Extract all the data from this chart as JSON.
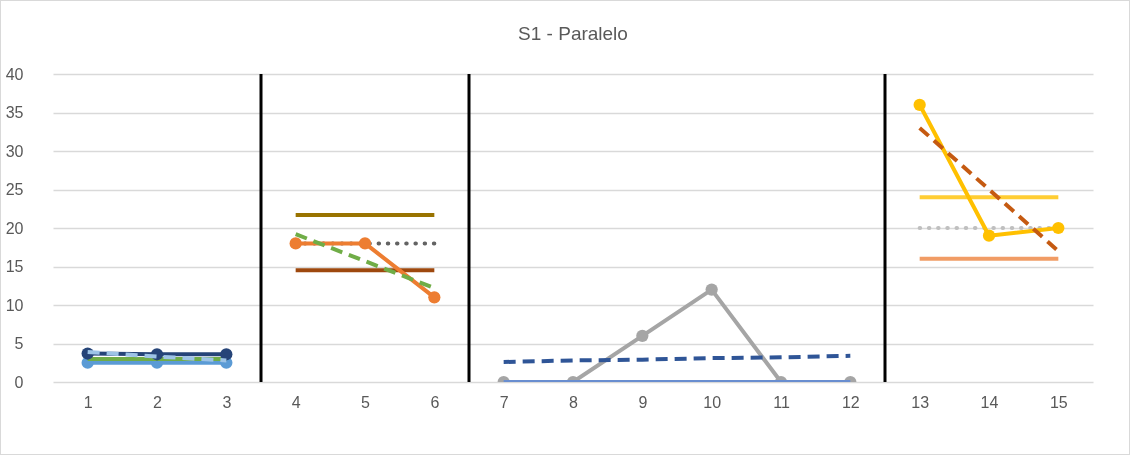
{
  "chart_data": {
    "type": "line",
    "title": "S1 - Paralelo",
    "xlim": [
      0.5,
      15.5
    ],
    "xticks": [
      1,
      2,
      3,
      4,
      5,
      6,
      7,
      8,
      9,
      10,
      11,
      12,
      13,
      14,
      15
    ],
    "ylim": [
      0,
      40
    ],
    "yticks": [
      0,
      5,
      10,
      15,
      20,
      25,
      30,
      35,
      40
    ],
    "grid": "y",
    "series": [
      {
        "color": "#5b9bd5",
        "x": [
          1,
          2,
          3
        ],
        "values": [
          2.5,
          2.5,
          2.5
        ],
        "marker": "circle",
        "line_style": "solid"
      },
      {
        "color": "#70ad47",
        "x": [
          1,
          2,
          3
        ],
        "values": [
          3,
          3,
          3
        ],
        "marker": "none",
        "line_style": "solid"
      },
      {
        "color": "#264478",
        "x": [
          1,
          2,
          3
        ],
        "values": [
          3.7,
          3.6,
          3.6
        ],
        "marker": "circle",
        "line_style": "solid"
      },
      {
        "color": "#9dc3e6",
        "x": [
          1,
          2,
          3
        ],
        "values": [
          3.9,
          3.3,
          2.8
        ],
        "marker": "none",
        "line_style": "dashed"
      },
      {
        "color": "#997300",
        "x": [
          4,
          5,
          6
        ],
        "values": [
          21.7,
          21.7,
          21.7
        ],
        "marker": "none",
        "line_style": "solid"
      },
      {
        "color": "#9e480e",
        "x": [
          4,
          5,
          6
        ],
        "values": [
          14.5,
          14.5,
          14.5
        ],
        "marker": "none",
        "line_style": "solid"
      },
      {
        "color": "#636363",
        "x": [
          4,
          5,
          6
        ],
        "values": [
          18,
          18,
          18
        ],
        "marker": "none",
        "line_style": "dotted"
      },
      {
        "color": "#ed7d31",
        "x": [
          4,
          5,
          6
        ],
        "values": [
          18,
          18,
          11
        ],
        "marker": "circle",
        "line_style": "solid"
      },
      {
        "color": "#70ad47",
        "x": [
          4,
          5,
          6
        ],
        "values": [
          19.2,
          15.7,
          12.2
        ],
        "marker": "none",
        "line_style": "dashed"
      },
      {
        "color": "#a5a5a5",
        "x": [
          7,
          8,
          9,
          10,
          11,
          12
        ],
        "values": [
          0,
          0,
          6,
          12,
          0,
          0
        ],
        "marker": "circle",
        "line_style": "solid"
      },
      {
        "color": "#698ed0",
        "x": [
          7,
          8,
          9,
          10,
          11,
          12
        ],
        "values": [
          0,
          0,
          0,
          0,
          0,
          0
        ],
        "marker": "none",
        "line_style": "solid"
      },
      {
        "color": "#2f5597",
        "x": [
          7,
          8,
          9,
          10,
          11,
          12
        ],
        "values": [
          2.6,
          2.8,
          2.9,
          3.1,
          3.2,
          3.4
        ],
        "marker": "none",
        "line_style": "dashed"
      },
      {
        "color": "#ffcd33",
        "x": [
          13,
          14,
          15
        ],
        "values": [
          24,
          24,
          24
        ],
        "marker": "none",
        "line_style": "solid"
      },
      {
        "color": "#bfbfbf",
        "x": [
          13,
          14,
          15
        ],
        "values": [
          20,
          20,
          20
        ],
        "marker": "none",
        "line_style": "dotted"
      },
      {
        "color": "#f19c65",
        "x": [
          13,
          14,
          15
        ],
        "values": [
          16,
          16,
          16
        ],
        "marker": "none",
        "line_style": "solid"
      },
      {
        "color": "#ffc000",
        "x": [
          13,
          14,
          15
        ],
        "values": [
          36,
          19,
          20
        ],
        "marker": "circle",
        "line_style": "solid"
      },
      {
        "color": "#c55a11",
        "x": [
          13,
          14,
          15
        ],
        "values": [
          33,
          25,
          17
        ],
        "marker": "none",
        "line_style": "dashed"
      }
    ],
    "ref_lines": [
      {
        "axis": "x",
        "value": 3.5,
        "color": "#000000"
      },
      {
        "axis": "x",
        "value": 6.5,
        "color": "#000000"
      },
      {
        "axis": "x",
        "value": 12.5,
        "color": "#000000"
      }
    ]
  }
}
